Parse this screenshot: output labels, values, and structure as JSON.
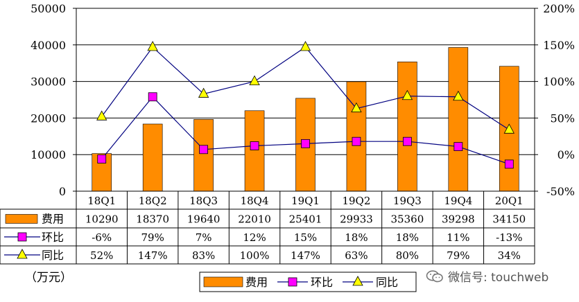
{
  "chart_data": {
    "type": "bar",
    "categories": [
      "18Q1",
      "18Q2",
      "18Q3",
      "18Q4",
      "19Q1",
      "19Q2",
      "19Q3",
      "19Q4",
      "20Q1"
    ],
    "series": [
      {
        "name": "费用",
        "kind": "bar",
        "axis": "left",
        "color": "#FF8C00",
        "values": [
          10290,
          18370,
          19640,
          22010,
          25401,
          29933,
          35360,
          39298,
          34150
        ],
        "table_labels": [
          "10290",
          "18370",
          "19640",
          "22010",
          "25401",
          "29933",
          "35360",
          "39298",
          "34150"
        ]
      },
      {
        "name": "环比",
        "kind": "line",
        "axis": "right",
        "marker": "square",
        "color": "#FF00FF",
        "values": [
          -6,
          79,
          7,
          12,
          15,
          18,
          18,
          11,
          -13
        ],
        "table_labels": [
          "-6%",
          "79%",
          "7%",
          "12%",
          "15%",
          "18%",
          "18%",
          "11%",
          "-13%"
        ]
      },
      {
        "name": "同比",
        "kind": "line",
        "axis": "right",
        "marker": "triangle",
        "color": "#FFFF00",
        "values": [
          52,
          147,
          83,
          100,
          147,
          63,
          80,
          79,
          34
        ],
        "table_labels": [
          "52%",
          "147%",
          "83%",
          "100%",
          "147%",
          "63%",
          "80%",
          "79%",
          "34%"
        ]
      }
    ],
    "ylim_left": [
      0,
      50000
    ],
    "yticks_left": [
      "0",
      "10000",
      "20000",
      "30000",
      "40000",
      "50000"
    ],
    "ylim_right": [
      -50,
      200
    ],
    "yticks_right": [
      "-50%",
      "0%",
      "50%",
      "100%",
      "150%",
      "200%"
    ],
    "grid": true,
    "legend_position": "bottom",
    "data_table": true
  },
  "unit_label": "（万元）",
  "watermark": "微信号: touchweb"
}
